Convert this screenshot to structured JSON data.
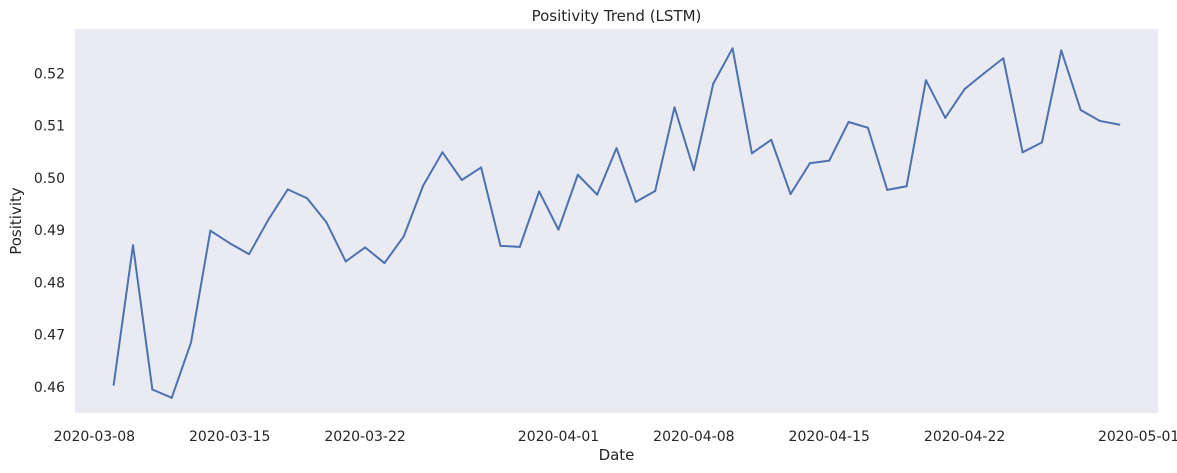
{
  "chart_data": {
    "type": "line",
    "title": "Positivity Trend (LSTM)",
    "xlabel": "Date",
    "ylabel": "Positivity",
    "grid": false,
    "legend": "none",
    "colors": {
      "plot_background": "#eaeaf2",
      "line": "#4c72b0",
      "text": "#262626"
    },
    "xlim": [
      "2020-03-07",
      "2020-05-02"
    ],
    "ylim": [
      0.455,
      0.5285
    ],
    "x_ticks": [
      "2020-03-08",
      "2020-03-15",
      "2020-03-22",
      "2020-04-01",
      "2020-04-08",
      "2020-04-15",
      "2020-04-22",
      "2020-05-01"
    ],
    "y_ticks": [
      "0.46",
      "0.47",
      "0.48",
      "0.49",
      "0.50",
      "0.51",
      "0.52"
    ],
    "series": [
      {
        "x": [
          "2020-03-09",
          "2020-03-10",
          "2020-03-11",
          "2020-03-12",
          "2020-03-13",
          "2020-03-14",
          "2020-03-15",
          "2020-03-16",
          "2020-03-17",
          "2020-03-18",
          "2020-03-19",
          "2020-03-20",
          "2020-03-21",
          "2020-03-22",
          "2020-03-23",
          "2020-03-24",
          "2020-03-25",
          "2020-03-26",
          "2020-03-27",
          "2020-03-28",
          "2020-03-29",
          "2020-03-30",
          "2020-03-31",
          "2020-04-01",
          "2020-04-02",
          "2020-04-03",
          "2020-04-04",
          "2020-04-05",
          "2020-04-06",
          "2020-04-07",
          "2020-04-08",
          "2020-04-09",
          "2020-04-10",
          "2020-04-11",
          "2020-04-12",
          "2020-04-13",
          "2020-04-14",
          "2020-04-15",
          "2020-04-16",
          "2020-04-17",
          "2020-04-18",
          "2020-04-19",
          "2020-04-20",
          "2020-04-21",
          "2020-04-22",
          "2020-04-23",
          "2020-04-24",
          "2020-04-25",
          "2020-04-26",
          "2020-04-27",
          "2020-04-28",
          "2020-04-29",
          "2020-04-30"
        ],
        "values": [
          0.4604,
          0.4871,
          0.4595,
          0.4579,
          0.4685,
          0.4899,
          0.4875,
          0.4854,
          0.492,
          0.4978,
          0.4961,
          0.4915,
          0.484,
          0.4867,
          0.4837,
          0.4888,
          0.4985,
          0.5049,
          0.4996,
          0.502,
          0.487,
          0.4868,
          0.4974,
          0.4901,
          0.5006,
          0.4968,
          0.5057,
          0.4954,
          0.4975,
          0.5135,
          0.5015,
          0.518,
          0.5248,
          0.5047,
          0.5073,
          0.4969,
          0.5028,
          0.5033,
          0.5107,
          0.5096,
          0.4977,
          0.4984,
          0.5187,
          0.5115,
          0.517,
          0.52,
          0.5229,
          0.5049,
          0.5068,
          0.5244,
          0.513,
          0.5109,
          0.5102
        ]
      }
    ]
  }
}
